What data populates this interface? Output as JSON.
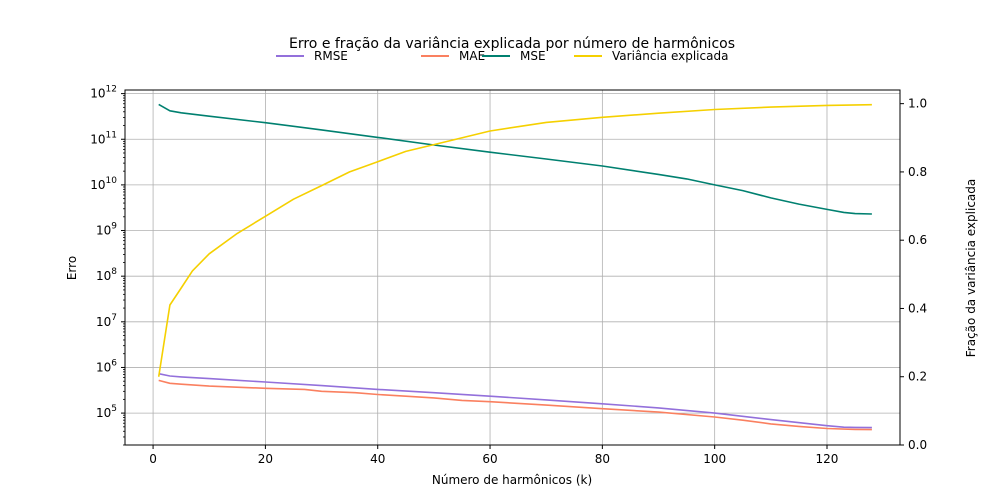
{
  "chart_data": {
    "type": "line",
    "title": "Erro e fração da variância explicada por número de harmônicos",
    "xlabel": "Número de harmônicos (k)",
    "ylabel": "Erro",
    "ylabel_right": "Fração da variância explicada",
    "xlim": [
      -5,
      133
    ],
    "ylim": [
      20000,
      1200000000000
    ],
    "yscale": "log",
    "ylim_right": [
      0,
      1.04
    ],
    "x_ticks": [
      0,
      20,
      40,
      60,
      80,
      100,
      120
    ],
    "y_ticks": [
      {
        "value": 100000,
        "base": "10",
        "exp": "5"
      },
      {
        "value": 1000000,
        "base": "10",
        "exp": "6"
      },
      {
        "value": 10000000,
        "base": "10",
        "exp": "7"
      },
      {
        "value": 100000000,
        "base": "10",
        "exp": "8"
      },
      {
        "value": 1000000000,
        "base": "10",
        "exp": "9"
      },
      {
        "value": 10000000000,
        "base": "10",
        "exp": "10"
      },
      {
        "value": 100000000000,
        "base": "10",
        "exp": "11"
      },
      {
        "value": 1000000000000,
        "base": "10",
        "exp": "12"
      }
    ],
    "y_ticks_right": [
      "0.0",
      "0.2",
      "0.4",
      "0.6",
      "0.8",
      "1.0"
    ],
    "grid": true,
    "legend_position": "top-center",
    "series": [
      {
        "name": "RMSE",
        "axis": "left",
        "color": "#9370db",
        "x": [
          1,
          3,
          5,
          10,
          20,
          30,
          40,
          50,
          60,
          70,
          80,
          90,
          100,
          110,
          120,
          123,
          125,
          128
        ],
        "y": [
          730000,
          650000,
          620000,
          570000,
          480000,
          400000,
          330000,
          280000,
          235000,
          195000,
          160000,
          130000,
          100000,
          72000,
          53000,
          49000,
          48500,
          48000
        ]
      },
      {
        "name": "MAE",
        "axis": "left",
        "color": "#fa8060",
        "x": [
          1,
          3,
          5,
          10,
          20,
          27,
          30,
          36,
          40,
          45,
          50,
          55,
          60,
          70,
          80,
          90,
          100,
          105,
          110,
          115,
          120,
          125,
          128
        ],
        "y": [
          520000,
          450000,
          430000,
          390000,
          350000,
          330000,
          300000,
          280000,
          255000,
          235000,
          215000,
          190000,
          178000,
          150000,
          125000,
          105000,
          82000,
          70000,
          58000,
          51000,
          46000,
          44000,
          43500
        ]
      },
      {
        "name": "MSE",
        "axis": "left",
        "color": "#008070",
        "x": [
          1,
          3,
          5,
          10,
          20,
          30,
          40,
          50,
          60,
          70,
          80,
          90,
          95,
          100,
          105,
          110,
          115,
          120,
          123,
          125,
          128
        ],
        "y": [
          580000000000,
          420000000000,
          380000000000,
          320000000000,
          230000000000,
          160000000000,
          110000000000,
          75000000000,
          52000000000,
          37000000000,
          26000000000,
          17000000000,
          13500000000,
          10000000000,
          7500000000,
          5200000000,
          3800000000,
          2900000000,
          2500000000,
          2350000000,
          2300000000
        ]
      },
      {
        "name": "Variância explicada",
        "axis": "right",
        "color": "#f5d000",
        "x": [
          1,
          3,
          5,
          7,
          10,
          15,
          20,
          25,
          30,
          35,
          40,
          45,
          50,
          60,
          70,
          80,
          90,
          100,
          110,
          120,
          128
        ],
        "y": [
          0.2,
          0.41,
          0.46,
          0.51,
          0.56,
          0.62,
          0.67,
          0.72,
          0.76,
          0.8,
          0.83,
          0.86,
          0.88,
          0.92,
          0.945,
          0.96,
          0.972,
          0.983,
          0.99,
          0.995,
          0.997
        ]
      }
    ]
  }
}
